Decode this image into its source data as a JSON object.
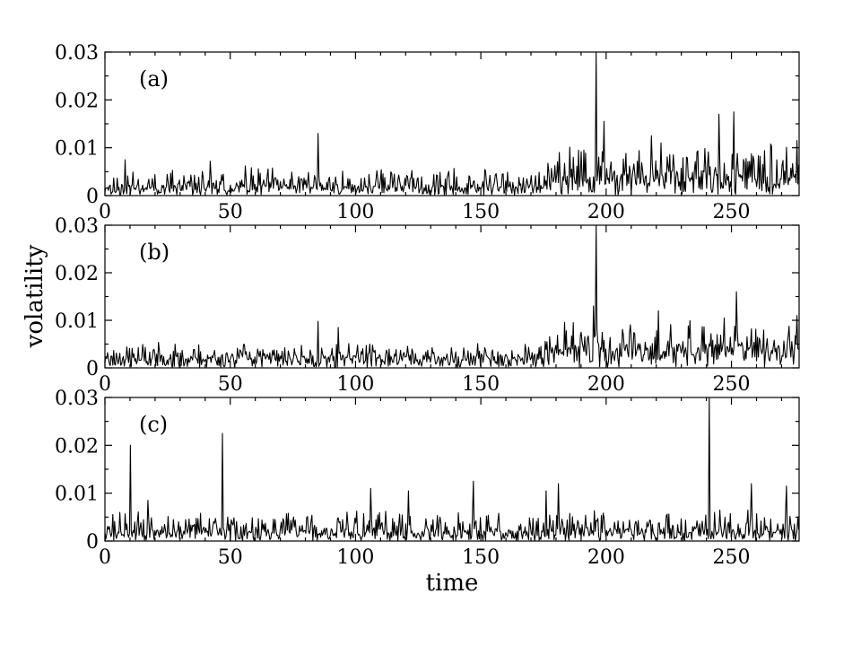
{
  "chart_data": {
    "type": "line",
    "xlabel": "time",
    "ylabel": "volatility",
    "xlim": [
      0,
      277
    ],
    "ylim": [
      0,
      0.03
    ],
    "x_ticks": [
      0,
      50,
      100,
      150,
      200,
      250
    ],
    "y_ticks": [
      0,
      0.01,
      0.02,
      0.03
    ],
    "y_tick_labels": [
      "0",
      "0.01",
      "0.02",
      "0.03"
    ],
    "grid": false,
    "panels": [
      {
        "label": "(a)",
        "base_level": 0.0018,
        "noise_amplitude": 0.004,
        "seed": 11,
        "regimes": [
          {
            "from": 0,
            "to": 175,
            "scale": 1.0
          },
          {
            "from": 175,
            "to": 277,
            "scale": 1.9
          }
        ],
        "spikes": [
          {
            "x": 8,
            "y": 0.0075
          },
          {
            "x": 42,
            "y": 0.0072
          },
          {
            "x": 56,
            "y": 0.0062
          },
          {
            "x": 85,
            "y": 0.013
          },
          {
            "x": 187,
            "y": 0.008
          },
          {
            "x": 191,
            "y": 0.0095
          },
          {
            "x": 196,
            "y": 0.03
          },
          {
            "x": 199,
            "y": 0.0155
          },
          {
            "x": 218,
            "y": 0.0125
          },
          {
            "x": 222,
            "y": 0.011
          },
          {
            "x": 245,
            "y": 0.017
          },
          {
            "x": 251,
            "y": 0.0175
          },
          {
            "x": 276,
            "y": 0.0115
          }
        ]
      },
      {
        "label": "(b)",
        "base_level": 0.0022,
        "noise_amplitude": 0.0032,
        "seed": 23,
        "regimes": [
          {
            "from": 0,
            "to": 175,
            "scale": 1.0
          },
          {
            "from": 175,
            "to": 277,
            "scale": 1.8
          }
        ],
        "spikes": [
          {
            "x": 85,
            "y": 0.0098
          },
          {
            "x": 93,
            "y": 0.0085
          },
          {
            "x": 187,
            "y": 0.0095
          },
          {
            "x": 195,
            "y": 0.013
          },
          {
            "x": 196,
            "y": 0.03
          },
          {
            "x": 221,
            "y": 0.012
          },
          {
            "x": 247,
            "y": 0.0105
          },
          {
            "x": 252,
            "y": 0.016
          },
          {
            "x": 276,
            "y": 0.011
          }
        ]
      },
      {
        "label": "(c)",
        "base_level": 0.002,
        "noise_amplitude": 0.0045,
        "seed": 37,
        "regimes": [
          {
            "from": 0,
            "to": 277,
            "scale": 1.0
          }
        ],
        "spikes": [
          {
            "x": 10,
            "y": 0.02
          },
          {
            "x": 17,
            "y": 0.0085
          },
          {
            "x": 47,
            "y": 0.0225
          },
          {
            "x": 106,
            "y": 0.011
          },
          {
            "x": 121,
            "y": 0.0105
          },
          {
            "x": 147,
            "y": 0.0125
          },
          {
            "x": 176,
            "y": 0.0105
          },
          {
            "x": 181,
            "y": 0.012
          },
          {
            "x": 241,
            "y": 0.03
          },
          {
            "x": 258,
            "y": 0.012
          },
          {
            "x": 272,
            "y": 0.0115
          }
        ]
      }
    ]
  }
}
